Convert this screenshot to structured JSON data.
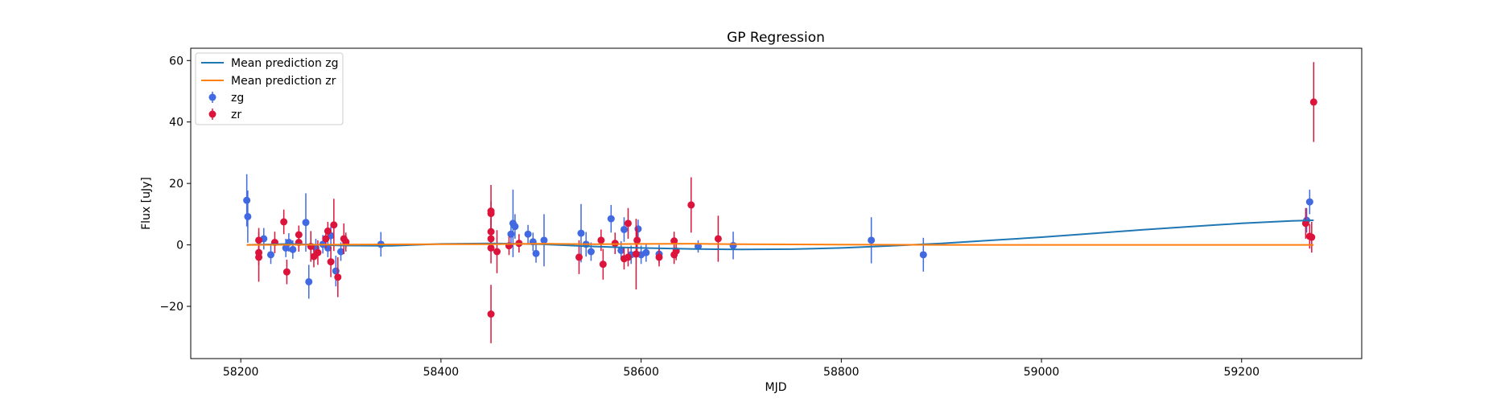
{
  "chart_data": {
    "type": "scatter",
    "title": "GP Regression",
    "xlabel": "MJD",
    "ylabel": "Flux [uJy]",
    "xlim": [
      58150,
      59320
    ],
    "ylim": [
      -37,
      64
    ],
    "xticks": [
      58200,
      58400,
      58600,
      58800,
      59000,
      59200
    ],
    "yticks": [
      -20,
      0,
      20,
      40,
      60
    ],
    "grid": false,
    "legend": {
      "placement": "top-left",
      "entries": [
        "Mean prediction zg",
        "Mean prediction zr",
        "zg",
        "zr"
      ]
    },
    "series": [
      {
        "name": "Mean prediction zg",
        "kind": "line",
        "color": "#1f77b4",
        "x": [
          58206,
          58250,
          58300,
          58350,
          58400,
          58450,
          58500,
          58550,
          58600,
          58650,
          58700,
          58750,
          58800,
          58850,
          58900,
          58950,
          59000,
          59050,
          59100,
          59150,
          59200,
          59250,
          59272
        ],
        "y": [
          0.0,
          0.3,
          -0.2,
          -0.3,
          0.3,
          0.5,
          0.2,
          -0.5,
          -1.0,
          -1.3,
          -1.5,
          -1.4,
          -1.0,
          -0.3,
          0.5,
          1.5,
          2.5,
          3.7,
          4.9,
          6.0,
          7.0,
          7.8,
          8.0
        ]
      },
      {
        "name": "Mean prediction zr",
        "kind": "line",
        "color": "#ff7f0e",
        "x": [
          58206,
          58300,
          58400,
          58450,
          58500,
          58550,
          58600,
          58650,
          58700,
          58800,
          58900,
          59000,
          59100,
          59200,
          59272
        ],
        "y": [
          0.0,
          0.1,
          0.2,
          0.2,
          0.4,
          0.2,
          0.3,
          0.4,
          0.2,
          0.1,
          0.0,
          0.0,
          0.0,
          0.0,
          0.0
        ]
      },
      {
        "name": "zg",
        "kind": "errorbar",
        "color": "#4169e1",
        "points": [
          {
            "x": 58206,
            "y": 14.5,
            "err": 8.5
          },
          {
            "x": 58207,
            "y": 9.2,
            "err": 8.5
          },
          {
            "x": 58223,
            "y": 2.0,
            "err": 3.5
          },
          {
            "x": 58230,
            "y": -3.2,
            "err": 3.0
          },
          {
            "x": 58245,
            "y": -1.0,
            "err": 3.0
          },
          {
            "x": 58248,
            "y": 0.8,
            "err": 3.0
          },
          {
            "x": 58252,
            "y": -1.5,
            "err": 3.0
          },
          {
            "x": 58265,
            "y": 7.3,
            "err": 9.5
          },
          {
            "x": 58268,
            "y": -12.0,
            "err": 5.5
          },
          {
            "x": 58275,
            "y": -1.0,
            "err": 3.0
          },
          {
            "x": 58282,
            "y": 0.2,
            "err": 3.0
          },
          {
            "x": 58287,
            "y": -1.0,
            "err": 3.0
          },
          {
            "x": 58290,
            "y": 3.0,
            "err": 3.0
          },
          {
            "x": 58295,
            "y": -8.5,
            "err": 5.0
          },
          {
            "x": 58300,
            "y": -2.2,
            "err": 3.0
          },
          {
            "x": 58305,
            "y": 0.8,
            "err": 3.0
          },
          {
            "x": 58340,
            "y": 0.2,
            "err": 4.0
          },
          {
            "x": 58470,
            "y": 3.5,
            "err": 4.0
          },
          {
            "x": 58472,
            "y": 7.0,
            "err": 11.0
          },
          {
            "x": 58474,
            "y": 6.0,
            "err": 4.0
          },
          {
            "x": 58487,
            "y": 3.5,
            "err": 3.0
          },
          {
            "x": 58492,
            "y": 1.0,
            "err": 3.0
          },
          {
            "x": 58495,
            "y": -2.8,
            "err": 3.0
          },
          {
            "x": 58503,
            "y": 1.5,
            "err": 8.5
          },
          {
            "x": 58540,
            "y": 3.8,
            "err": 9.5
          },
          {
            "x": 58545,
            "y": 0.2,
            "err": 4.0
          },
          {
            "x": 58550,
            "y": -2.2,
            "err": 3.0
          },
          {
            "x": 58570,
            "y": 8.5,
            "err": 4.5
          },
          {
            "x": 58580,
            "y": -1.8,
            "err": 3.0
          },
          {
            "x": 58583,
            "y": 5.0,
            "err": 4.0
          },
          {
            "x": 58590,
            "y": -3.2,
            "err": 3.0
          },
          {
            "x": 58597,
            "y": 5.2,
            "err": 3.0
          },
          {
            "x": 58600,
            "y": -3.2,
            "err": 3.0
          },
          {
            "x": 58605,
            "y": -2.5,
            "err": 3.0
          },
          {
            "x": 58618,
            "y": -3.0,
            "err": 3.0
          },
          {
            "x": 58657,
            "y": -0.5,
            "err": 2.0
          },
          {
            "x": 58692,
            "y": -0.2,
            "err": 4.5
          },
          {
            "x": 58830,
            "y": 1.5,
            "err": 7.5
          },
          {
            "x": 58882,
            "y": -3.2,
            "err": 5.5
          },
          {
            "x": 59265,
            "y": 8.0,
            "err": 4.0
          },
          {
            "x": 59268,
            "y": 14.0,
            "err": 4.0
          }
        ]
      },
      {
        "name": "zr",
        "kind": "errorbar",
        "color": "#dc143c",
        "points": [
          {
            "x": 58218,
            "y": 1.5,
            "err": 4.0
          },
          {
            "x": 58218,
            "y": -2.5,
            "err": 4.0
          },
          {
            "x": 58218,
            "y": -4.0,
            "err": 8.0
          },
          {
            "x": 58234,
            "y": 0.8,
            "err": 3.5
          },
          {
            "x": 58243,
            "y": 7.5,
            "err": 4.0
          },
          {
            "x": 58246,
            "y": -8.8,
            "err": 4.0
          },
          {
            "x": 58258,
            "y": 3.3,
            "err": 3.0
          },
          {
            "x": 58258,
            "y": 0.8,
            "err": 3.0
          },
          {
            "x": 58270,
            "y": -0.5,
            "err": 5.0
          },
          {
            "x": 58273,
            "y": -3.8,
            "err": 3.5
          },
          {
            "x": 58277,
            "y": -2.5,
            "err": 4.0
          },
          {
            "x": 58285,
            "y": 2.0,
            "err": 3.0
          },
          {
            "x": 58287,
            "y": 4.5,
            "err": 3.0
          },
          {
            "x": 58290,
            "y": -5.5,
            "err": 5.0
          },
          {
            "x": 58293,
            "y": 6.5,
            "err": 8.5
          },
          {
            "x": 58297,
            "y": -10.5,
            "err": 6.5
          },
          {
            "x": 58303,
            "y": 2.0,
            "err": 5.0
          },
          {
            "x": 58305,
            "y": 1.0,
            "err": 3.0
          },
          {
            "x": 58450,
            "y": 11.0,
            "err": 8.5
          },
          {
            "x": 58450,
            "y": 10.2,
            "err": 4.0
          },
          {
            "x": 58450,
            "y": 4.3,
            "err": 4.0
          },
          {
            "x": 58450,
            "y": 2.0,
            "err": 4.0
          },
          {
            "x": 58450,
            "y": -1.0,
            "err": 5.0
          },
          {
            "x": 58450,
            "y": -22.5,
            "err": 9.5
          },
          {
            "x": 58456,
            "y": -2.2,
            "err": 7.0
          },
          {
            "x": 58468,
            "y": -0.3,
            "err": 3.0
          },
          {
            "x": 58478,
            "y": 0.5,
            "err": 3.0
          },
          {
            "x": 58538,
            "y": -4.0,
            "err": 5.5
          },
          {
            "x": 58560,
            "y": 1.5,
            "err": 3.5
          },
          {
            "x": 58562,
            "y": -6.3,
            "err": 5.0
          },
          {
            "x": 58574,
            "y": 0.5,
            "err": 3.5
          },
          {
            "x": 58583,
            "y": -4.5,
            "err": 3.5
          },
          {
            "x": 58587,
            "y": 7.0,
            "err": 5.0
          },
          {
            "x": 58587,
            "y": -4.0,
            "err": 3.0
          },
          {
            "x": 58595,
            "y": -3.0,
            "err": 11.5
          },
          {
            "x": 58596,
            "y": 1.5,
            "err": 4.0
          },
          {
            "x": 58618,
            "y": -4.0,
            "err": 3.0
          },
          {
            "x": 58633,
            "y": 1.3,
            "err": 3.0
          },
          {
            "x": 58633,
            "y": -3.2,
            "err": 3.0
          },
          {
            "x": 58635,
            "y": -2.0,
            "err": 3.0
          },
          {
            "x": 58650,
            "y": 13.0,
            "err": 9.0
          },
          {
            "x": 58677,
            "y": 2.0,
            "err": 7.5
          },
          {
            "x": 59264,
            "y": 7.0,
            "err": 5.0
          },
          {
            "x": 59268,
            "y": 2.8,
            "err": 4.0
          },
          {
            "x": 59270,
            "y": 2.5,
            "err": 5.0
          },
          {
            "x": 59272,
            "y": 46.5,
            "err": 13.0
          }
        ]
      }
    ]
  }
}
